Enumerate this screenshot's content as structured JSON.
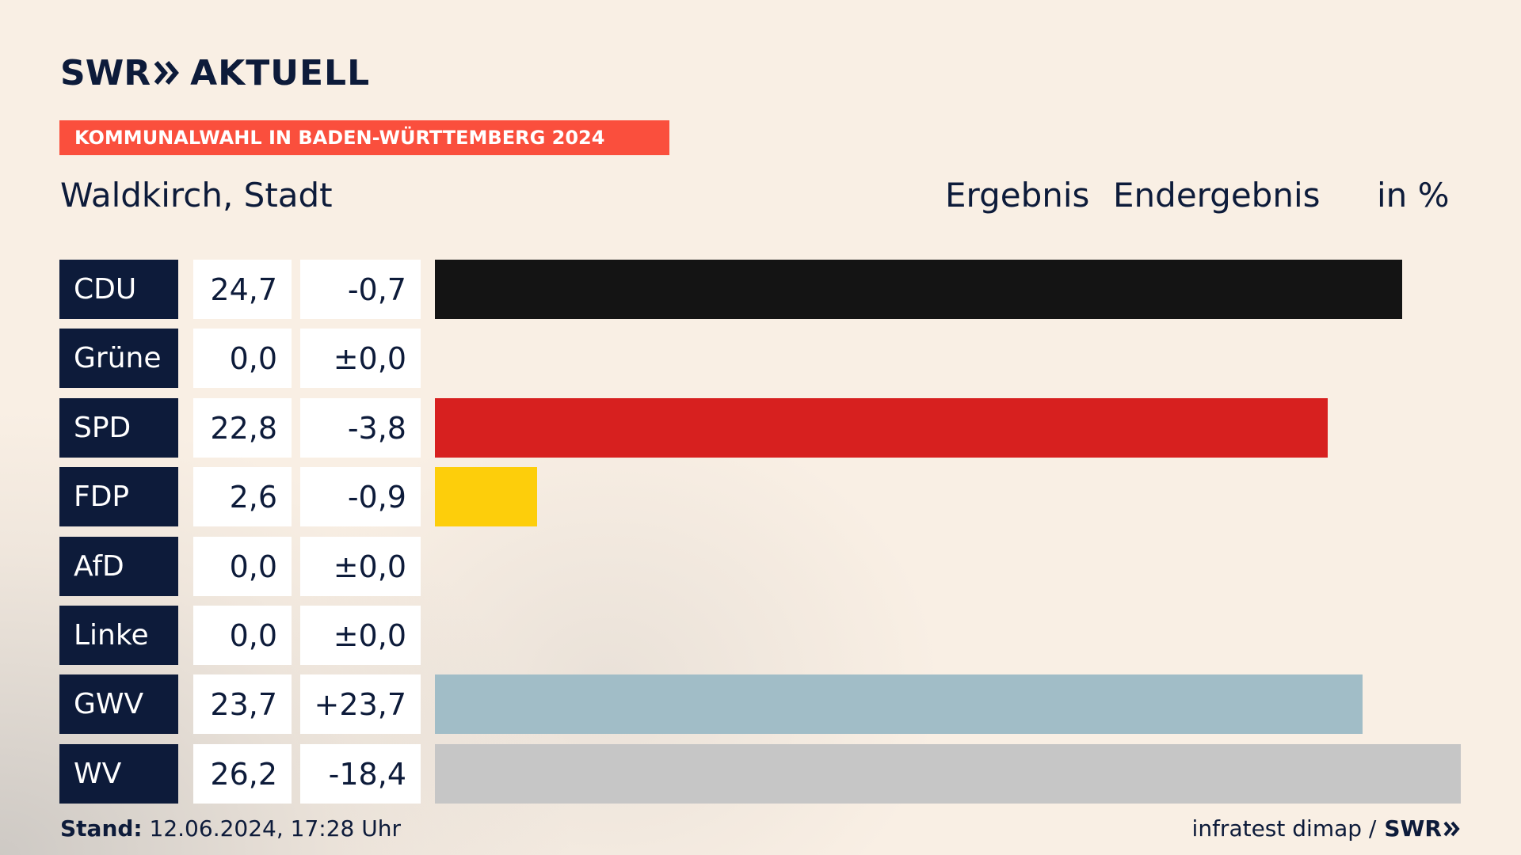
{
  "brand": {
    "logo_swr": "SWR",
    "logo_aktuell": "AKTUELL"
  },
  "banner": "KOMMUNALWAHL IN BADEN-WÜRTTEMBERG 2024",
  "place": "Waldkirch, Stadt",
  "headers": {
    "ergebnis": "Ergebnis",
    "endergebnis": "Endergebnis",
    "unit": "in %"
  },
  "chart_data": {
    "type": "bar",
    "orientation": "horizontal",
    "categories": [
      "CDU",
      "Grüne",
      "SPD",
      "FDP",
      "AfD",
      "Linke",
      "GWV",
      "WV"
    ],
    "values": [
      24.7,
      0.0,
      22.8,
      2.6,
      0.0,
      0.0,
      23.7,
      26.2
    ],
    "value_labels": [
      "24,7",
      "0,0",
      "22,8",
      "2,6",
      "0,0",
      "0,0",
      "23,7",
      "26,2"
    ],
    "diff_labels": [
      "-0,7",
      "±0,0",
      "-3,8",
      "-0,9",
      "±0,0",
      "±0,0",
      "+23,7",
      "-18,4"
    ],
    "colors": [
      "#141414",
      "#4a9a3a",
      "#d7201f",
      "#fdce0b",
      "#0f9ad8",
      "#b8256b",
      "#a1bdc7",
      "#c6c6c6"
    ],
    "xlim": [
      0,
      26.2
    ]
  },
  "footer": {
    "stand_label": "Stand:",
    "stand_value": "12.06.2024, 17:28 Uhr",
    "source": "infratest dimap /",
    "source_logo": "SWR"
  },
  "colors": {
    "background": "#f9efe4",
    "navy": "#0d1b3a",
    "banner": "#fa4f3d"
  }
}
